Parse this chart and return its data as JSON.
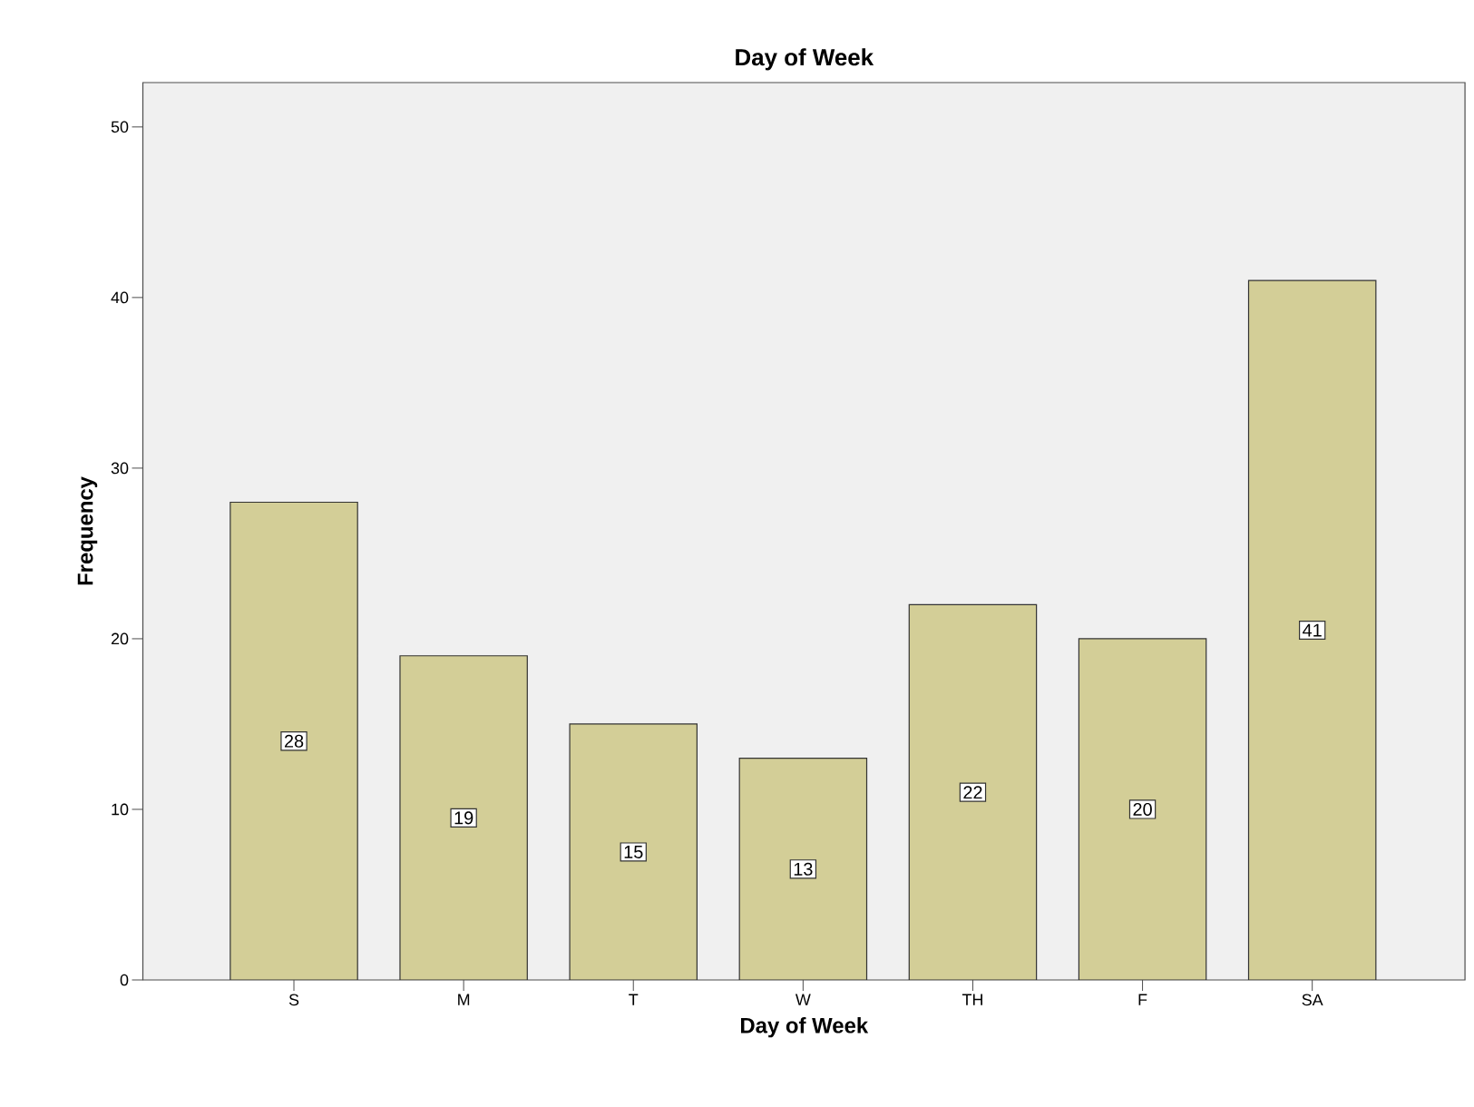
{
  "chart_data": {
    "type": "bar",
    "title": "Day of Week",
    "xlabel": "Day of Week",
    "ylabel": "Frequency",
    "categories": [
      "S",
      "M",
      "T",
      "W",
      "TH",
      "F",
      "SA"
    ],
    "values": [
      28,
      19,
      15,
      13,
      22,
      20,
      41
    ],
    "color": "#d3ce97",
    "ylim": [
      0,
      52.6
    ],
    "yticks": [
      0,
      10,
      20,
      30,
      40,
      50
    ],
    "data_labels": true
  }
}
